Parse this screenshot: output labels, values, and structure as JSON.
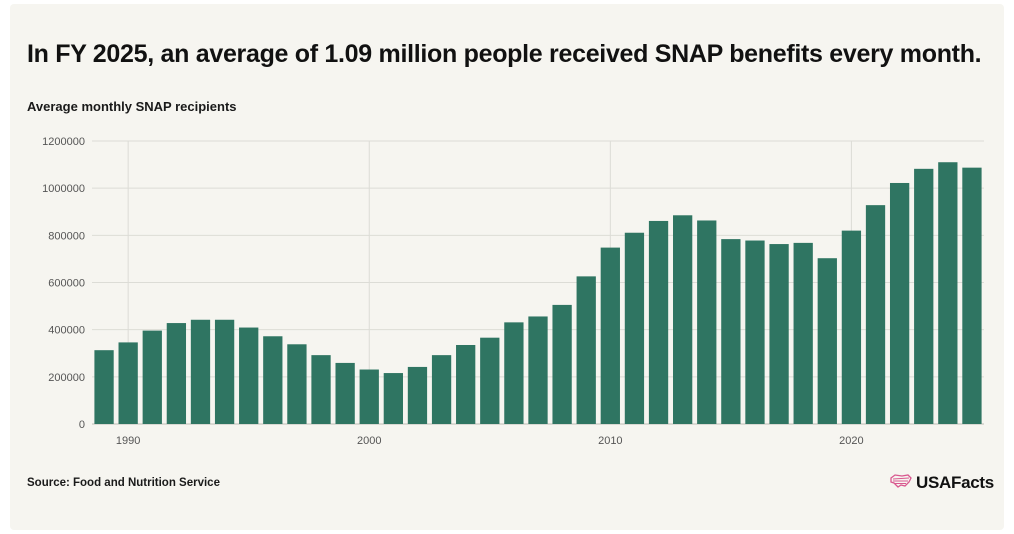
{
  "title": "In FY 2025, an average of 1.09 million people received SNAP benefits every month.",
  "subtitle": "Average monthly SNAP recipients",
  "source": "Source: Food and Nutrition Service",
  "brand": {
    "name": "USAFacts",
    "icon": "us-flag-map-icon"
  },
  "colors": {
    "bar": "#2f7562",
    "background": "#f6f5f0",
    "grid": "#dcdcd6",
    "brand_icon": "#d9588f"
  },
  "chart_data": {
    "type": "bar",
    "title": "Average monthly SNAP recipients",
    "xlabel": "",
    "ylabel": "",
    "ylim": [
      0,
      1200000
    ],
    "yticks": [
      0,
      200000,
      400000,
      600000,
      800000,
      1000000,
      1200000
    ],
    "ytick_labels": [
      "0",
      "200000",
      "400000",
      "600000",
      "800000",
      "1000000",
      "1200000"
    ],
    "xticks": [
      1990,
      2000,
      2010,
      2020
    ],
    "xtick_labels": [
      "1990",
      "2000",
      "2010",
      "2020"
    ],
    "grid": true,
    "categories": [
      1989,
      1990,
      1991,
      1992,
      1993,
      1994,
      1995,
      1996,
      1997,
      1998,
      1999,
      2000,
      2001,
      2002,
      2003,
      2004,
      2005,
      2006,
      2007,
      2008,
      2009,
      2010,
      2011,
      2012,
      2013,
      2014,
      2015,
      2016,
      2017,
      2018,
      2019,
      2020,
      2021,
      2022,
      2023,
      2024,
      2025
    ],
    "values": [
      313000,
      346000,
      396000,
      428000,
      442000,
      442000,
      409000,
      372000,
      338000,
      292000,
      259000,
      231000,
      216000,
      242000,
      292000,
      335000,
      366000,
      431000,
      456000,
      505000,
      626000,
      748000,
      811000,
      861000,
      885000,
      863000,
      784000,
      778000,
      763000,
      768000,
      703000,
      820000,
      928000,
      1022000,
      1082000,
      1110000,
      1087000
    ]
  }
}
